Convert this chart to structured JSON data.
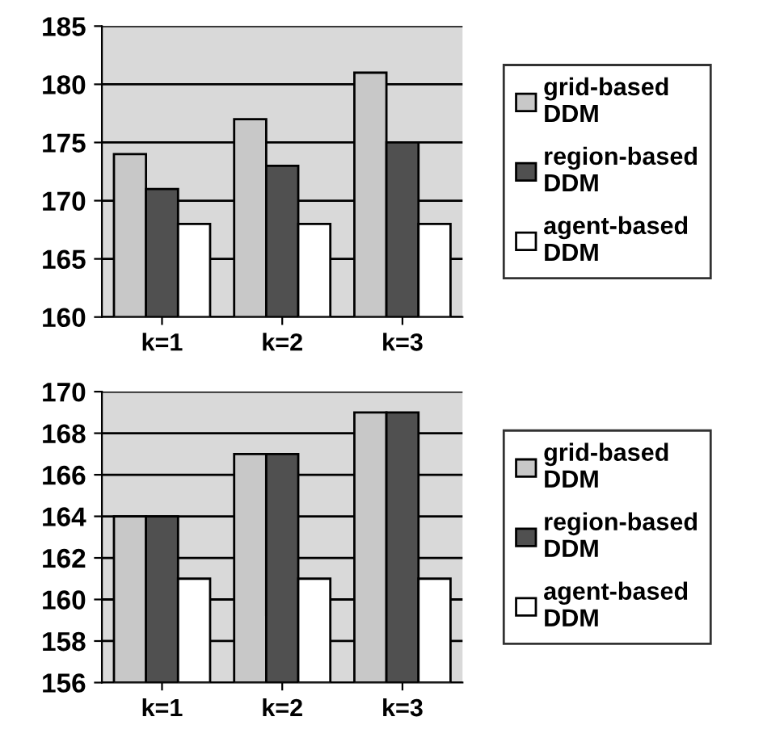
{
  "chart_data": [
    {
      "type": "bar",
      "categories": [
        "k=1",
        "k=2",
        "k=3"
      ],
      "ylim": [
        160,
        185
      ],
      "yticks": [
        160,
        165,
        170,
        175,
        180,
        185
      ],
      "grid": "y",
      "legend": "right",
      "series": [
        {
          "name": "grid-based DDM",
          "color": "#c8c8c8",
          "values": [
            174,
            177,
            181
          ]
        },
        {
          "name": "region-based DDM",
          "color": "#505050",
          "values": [
            171,
            173,
            175
          ]
        },
        {
          "name": "agent-based DDM",
          "color": "#ffffff",
          "values": [
            168,
            168,
            168
          ]
        }
      ]
    },
    {
      "type": "bar",
      "categories": [
        "k=1",
        "k=2",
        "k=3"
      ],
      "ylim": [
        156,
        170
      ],
      "yticks": [
        156,
        158,
        160,
        162,
        164,
        166,
        168,
        170
      ],
      "grid": "y",
      "legend": "right",
      "series": [
        {
          "name": "grid-based DDM",
          "color": "#c8c8c8",
          "values": [
            164,
            167,
            169
          ]
        },
        {
          "name": "region-based DDM",
          "color": "#505050",
          "values": [
            164,
            167,
            169
          ]
        },
        {
          "name": "agent-based DDM",
          "color": "#ffffff",
          "values": [
            161,
            161,
            161
          ]
        }
      ]
    }
  ]
}
